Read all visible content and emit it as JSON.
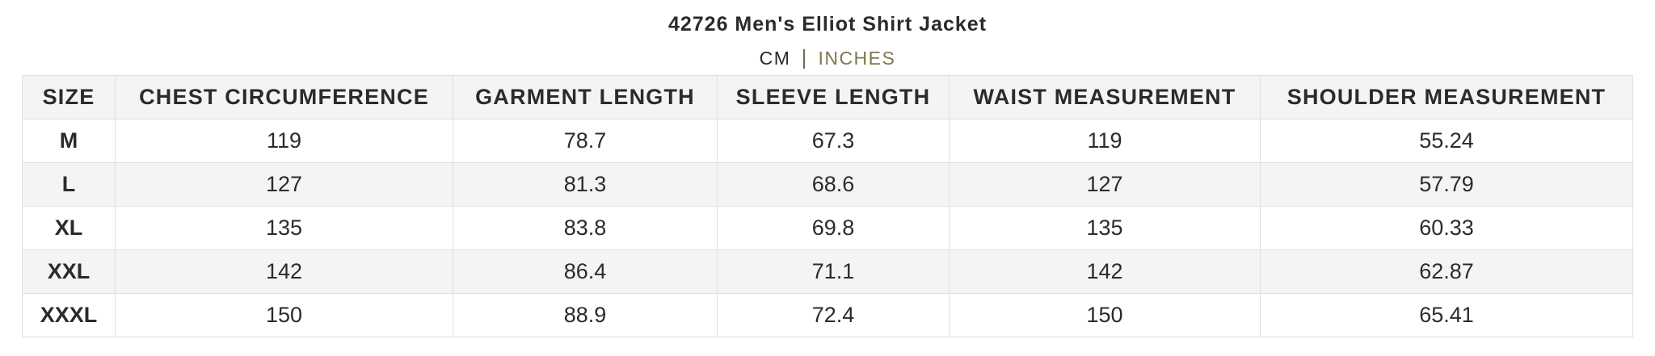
{
  "title": "42726 Men's Elliot Shirt Jacket",
  "units": {
    "cm": "CM",
    "inches": "INCHES",
    "selected": "CM"
  },
  "colors": {
    "text": "#2b2b2b",
    "accent": "#7d7752",
    "stripe": "#f4f4f4",
    "border": "#e0e0e0"
  },
  "table": {
    "headers": [
      "SIZE",
      "CHEST CIRCUMFERENCE",
      "GARMENT LENGTH",
      "SLEEVE LENGTH",
      "WAIST MEASUREMENT",
      "SHOULDER MEASUREMENT"
    ],
    "rows": [
      [
        "M",
        "119",
        "78.7",
        "67.3",
        "119",
        "55.24"
      ],
      [
        "L",
        "127",
        "81.3",
        "68.6",
        "127",
        "57.79"
      ],
      [
        "XL",
        "135",
        "83.8",
        "69.8",
        "135",
        "60.33"
      ],
      [
        "XXL",
        "142",
        "86.4",
        "71.1",
        "142",
        "62.87"
      ],
      [
        "XXXL",
        "150",
        "88.9",
        "72.4",
        "150",
        "65.41"
      ]
    ]
  }
}
